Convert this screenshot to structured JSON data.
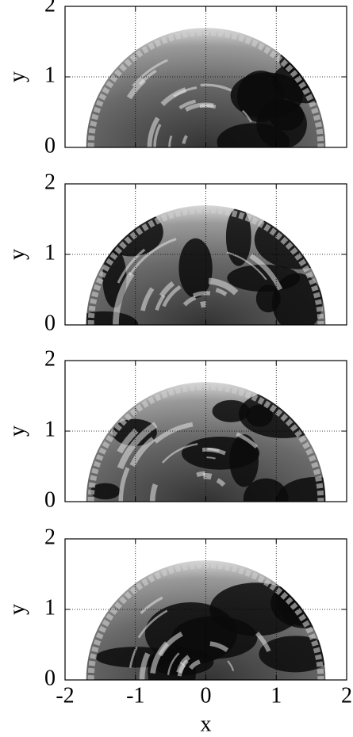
{
  "chart_data": [
    {
      "type": "image",
      "ylabel": "y",
      "xlim": [
        -2,
        2
      ],
      "ylim": [
        0,
        2
      ],
      "xticks": [
        -2,
        -1,
        0,
        1,
        2
      ],
      "yticks": [
        0,
        1,
        2
      ],
      "grid": true
    },
    {
      "type": "image",
      "ylabel": "y",
      "xlim": [
        -2,
        2
      ],
      "ylim": [
        0,
        2
      ],
      "xticks": [
        -2,
        -1,
        0,
        1,
        2
      ],
      "yticks": [
        0,
        1,
        2
      ],
      "grid": true
    },
    {
      "type": "image",
      "ylabel": "y",
      "xlim": [
        -2,
        2
      ],
      "ylim": [
        0,
        2
      ],
      "xticks": [
        -2,
        -1,
        0,
        1,
        2
      ],
      "yticks": [
        0,
        1,
        2
      ],
      "grid": true
    },
    {
      "type": "image",
      "ylabel": "y",
      "xlabel": "x",
      "xlim": [
        -2,
        2
      ],
      "ylim": [
        0,
        2
      ],
      "xticks": [
        -2,
        -1,
        0,
        1,
        2
      ],
      "yticks": [
        0,
        1,
        2
      ],
      "grid": true
    }
  ]
}
